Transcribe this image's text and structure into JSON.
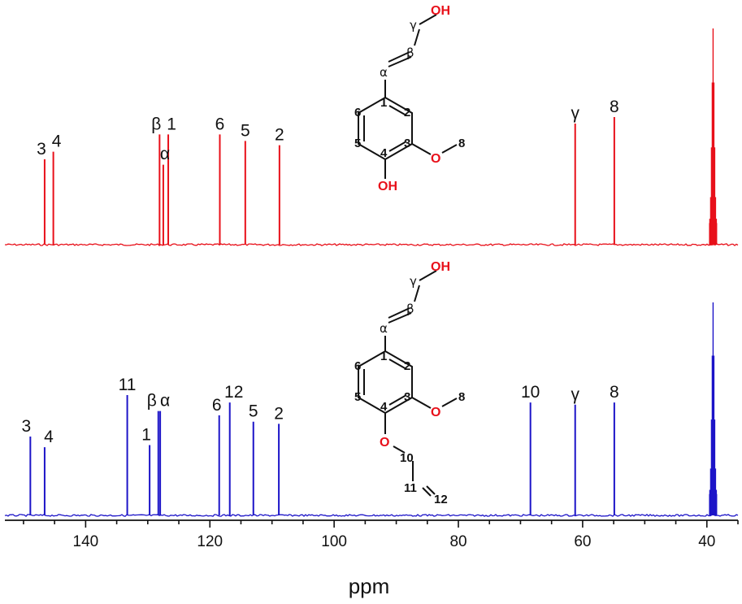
{
  "chart_data": [
    {
      "type": "line",
      "xlabel": "ppm",
      "xlim": [
        153,
        35
      ],
      "xticks": [
        140,
        120,
        100,
        80,
        60,
        40
      ],
      "xtick_labels": [
        "140",
        "120",
        "100",
        "80",
        "60",
        "40"
      ],
      "reversed_x": true,
      "panels": [
        {
          "color": "#e8101a",
          "peaks": [
            {
              "ppm": 146.6,
              "rel_height": 0.395,
              "label": "3"
            },
            {
              "ppm": 145.2,
              "rel_height": 0.43,
              "label": "4"
            },
            {
              "ppm": 128.1,
              "rel_height": 0.51,
              "label": "β"
            },
            {
              "ppm": 127.5,
              "rel_height": 0.37,
              "label": "α"
            },
            {
              "ppm": 126.7,
              "rel_height": 0.51,
              "label": "1"
            },
            {
              "ppm": 118.4,
              "rel_height": 0.51,
              "label": "6"
            },
            {
              "ppm": 114.3,
              "rel_height": 0.48,
              "label": "5"
            },
            {
              "ppm": 108.8,
              "rel_height": 0.46,
              "label": "2"
            },
            {
              "ppm": 61.2,
              "rel_height": 0.56,
              "label": "γ"
            },
            {
              "ppm": 54.9,
              "rel_height": 0.59,
              "label": "8"
            },
            {
              "ppm": 39.0,
              "rel_height": 1.0,
              "label": ""
            }
          ]
        },
        {
          "color": "#1c14c8",
          "peaks": [
            {
              "ppm": 148.9,
              "rel_height": 0.37,
              "label": "3"
            },
            {
              "ppm": 146.6,
              "rel_height": 0.32,
              "label": "4"
            },
            {
              "ppm": 133.3,
              "rel_height": 0.565,
              "label": "11"
            },
            {
              "ppm": 129.7,
              "rel_height": 0.33,
              "label": "1"
            },
            {
              "ppm": 128.3,
              "rel_height": 0.49,
              "label": "β"
            },
            {
              "ppm": 128.0,
              "rel_height": 0.49,
              "label": "α"
            },
            {
              "ppm": 118.5,
              "rel_height": 0.47,
              "label": "6"
            },
            {
              "ppm": 116.8,
              "rel_height": 0.53,
              "label": "12"
            },
            {
              "ppm": 113.0,
              "rel_height": 0.44,
              "label": "5"
            },
            {
              "ppm": 108.9,
              "rel_height": 0.43,
              "label": "2"
            },
            {
              "ppm": 68.4,
              "rel_height": 0.53,
              "label": "10"
            },
            {
              "ppm": 61.2,
              "rel_height": 0.52,
              "label": "γ"
            },
            {
              "ppm": 54.9,
              "rel_height": 0.53,
              "label": "8"
            },
            {
              "ppm": 39.0,
              "rel_height": 1.0,
              "label": ""
            }
          ]
        }
      ]
    }
  ],
  "structures": {
    "top": {
      "atoms": [
        "OH",
        "γ",
        "β",
        "α",
        "1",
        "2",
        "3",
        "4",
        "5",
        "6",
        "O",
        "8",
        "OH"
      ]
    },
    "bottom": {
      "atoms": [
        "OH",
        "γ",
        "β",
        "α",
        "1",
        "2",
        "3",
        "4",
        "5",
        "6",
        "O",
        "8",
        "O",
        "10",
        "11",
        "12"
      ]
    }
  }
}
